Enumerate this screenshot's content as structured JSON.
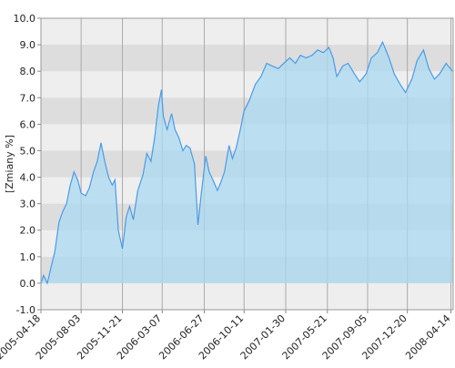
{
  "chart_data": {
    "type": "area",
    "ylabel": "[Zmiany %]",
    "x": [
      "2005-04-18",
      "2005-04-25",
      "2005-05-05",
      "2005-05-15",
      "2005-05-25",
      "2005-06-05",
      "2005-06-15",
      "2005-06-25",
      "2005-07-05",
      "2005-07-15",
      "2005-07-25",
      "2005-08-03",
      "2005-08-15",
      "2005-08-25",
      "2005-09-05",
      "2005-09-15",
      "2005-09-25",
      "2005-10-05",
      "2005-10-15",
      "2005-10-25",
      "2005-11-01",
      "2005-11-10",
      "2005-11-21",
      "2005-12-01",
      "2005-12-10",
      "2005-12-20",
      "2006-01-01",
      "2006-01-15",
      "2006-01-25",
      "2006-02-05",
      "2006-02-15",
      "2006-02-25",
      "2006-03-05",
      "2006-03-10",
      "2006-03-20",
      "2006-04-01",
      "2006-04-10",
      "2006-04-20",
      "2006-05-01",
      "2006-05-10",
      "2006-05-20",
      "2006-06-01",
      "2006-06-10",
      "2006-06-20",
      "2006-07-01",
      "2006-07-10",
      "2006-07-20",
      "2006-08-01",
      "2006-08-10",
      "2006-08-20",
      "2006-09-01",
      "2006-09-10",
      "2006-09-20",
      "2006-10-01",
      "2006-10-11",
      "2006-10-25",
      "2006-11-10",
      "2006-11-25",
      "2006-12-10",
      "2006-12-25",
      "2007-01-10",
      "2007-01-25",
      "2007-02-10",
      "2007-02-25",
      "2007-03-10",
      "2007-03-25",
      "2007-04-10",
      "2007-04-25",
      "2007-05-10",
      "2007-05-25",
      "2007-06-05",
      "2007-06-15",
      "2007-07-01",
      "2007-07-15",
      "2007-08-01",
      "2007-08-15",
      "2007-09-01",
      "2007-09-15",
      "2007-10-01",
      "2007-10-15",
      "2007-11-01",
      "2007-11-15",
      "2007-12-01",
      "2007-12-15",
      "2008-01-01",
      "2008-01-15",
      "2008-02-01",
      "2008-02-15",
      "2008-03-01",
      "2008-03-15",
      "2008-04-01",
      "2008-04-18"
    ],
    "series": [
      {
        "color": "#4a9be8",
        "values": [
          0.0,
          0.3,
          0.0,
          0.6,
          1.2,
          2.3,
          2.7,
          3.0,
          3.7,
          4.2,
          3.9,
          3.4,
          3.3,
          3.6,
          4.2,
          4.6,
          5.3,
          4.6,
          4.0,
          3.7,
          3.9,
          2.0,
          1.3,
          2.5,
          2.9,
          2.4,
          3.5,
          4.1,
          4.9,
          4.6,
          5.5,
          6.7,
          7.3,
          6.3,
          5.8,
          6.4,
          5.8,
          5.5,
          5.0,
          5.2,
          5.1,
          4.5,
          2.2,
          3.5,
          4.8,
          4.2,
          3.9,
          3.5,
          3.8,
          4.2,
          5.2,
          4.7,
          5.1,
          5.8,
          6.5,
          6.9,
          7.5,
          7.8,
          8.3,
          8.2,
          8.1,
          8.3,
          8.5,
          8.3,
          8.6,
          8.5,
          8.6,
          8.8,
          8.7,
          8.9,
          8.5,
          7.8,
          8.2,
          8.3,
          7.9,
          7.6,
          7.9,
          8.5,
          8.7,
          9.1,
          8.5,
          7.9,
          7.5,
          7.2,
          7.7,
          8.4,
          8.8,
          8.1,
          7.7,
          7.9,
          8.3,
          8.0
        ]
      }
    ],
    "xlim": [
      "2005-04-18",
      "2008-04-20"
    ],
    "xticks": [
      "2005-04-18",
      "2005-08-03",
      "2005-11-21",
      "2006-03-07",
      "2006-06-27",
      "2006-10-11",
      "2007-01-30",
      "2007-05-21",
      "2007-09-05",
      "2007-12-20",
      "2008-04-14"
    ],
    "ylim": [
      -1,
      10
    ],
    "yticks": [
      {
        "value": -1,
        "label": "-1.0"
      },
      {
        "value": 0,
        "label": "0.0"
      },
      {
        "value": 1,
        "label": "1.0"
      },
      {
        "value": 2,
        "label": "2.0"
      },
      {
        "value": 3,
        "label": "3.0"
      },
      {
        "value": 4,
        "label": "4.0"
      },
      {
        "value": 5,
        "label": "5.0"
      },
      {
        "value": 6,
        "label": "6.0"
      },
      {
        "value": 7,
        "label": "7.0"
      },
      {
        "value": 8,
        "label": "8.0"
      },
      {
        "value": 9,
        "label": "9.0"
      },
      {
        "value": 10,
        "label": "10.0"
      }
    ],
    "grid": true,
    "fill_color": "#a9d9f0"
  }
}
